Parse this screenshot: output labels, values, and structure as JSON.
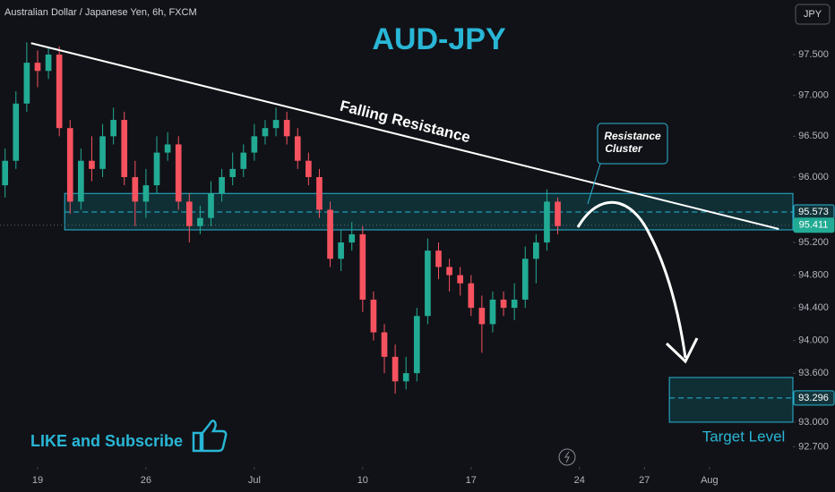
{
  "chart_data": {
    "type": "candlestick",
    "header": "Australian Dollar / Japanese Yen, 6h, FXCM",
    "currency": "JPY",
    "title": "AUD-JPY",
    "trendline_label": "Falling Resistance",
    "callout": [
      "Resistance",
      "Cluster"
    ],
    "cta": "LIKE and Subscribe",
    "target_label": "Target Level",
    "up_color": "#22ab94",
    "down_color": "#f7525f",
    "x": [
      1,
      2,
      3,
      4,
      5,
      6,
      7,
      8,
      9,
      10,
      11,
      12,
      13,
      14,
      15,
      16,
      17,
      18,
      19,
      20,
      21,
      22,
      23,
      24,
      25,
      26,
      27,
      28,
      29,
      30,
      31,
      32,
      33,
      34,
      35,
      36,
      37,
      38,
      39,
      40,
      41,
      42,
      43,
      44,
      45,
      46,
      47,
      48,
      49,
      50,
      51,
      52
    ],
    "open": [
      95.9,
      96.2,
      96.9,
      97.4,
      97.3,
      97.5,
      96.6,
      95.7,
      96.2,
      96.1,
      96.5,
      96.7,
      96.0,
      95.7,
      95.9,
      96.3,
      96.4,
      95.7,
      95.4,
      95.5,
      95.8,
      96.0,
      96.1,
      96.3,
      96.5,
      96.6,
      96.7,
      96.5,
      96.2,
      96.0,
      95.6,
      95.0,
      95.2,
      95.3,
      94.5,
      94.1,
      93.8,
      93.5,
      93.6,
      94.3,
      95.1,
      94.9,
      94.8,
      94.7,
      94.4,
      94.2,
      94.5,
      94.4,
      94.5,
      95.0,
      95.2,
      95.7
    ],
    "high": [
      96.35,
      97.05,
      97.65,
      97.55,
      97.6,
      97.6,
      96.7,
      96.35,
      96.5,
      96.65,
      96.85,
      96.8,
      96.2,
      96.1,
      96.5,
      96.55,
      96.5,
      95.8,
      95.65,
      95.95,
      96.1,
      96.3,
      96.4,
      96.65,
      96.7,
      96.85,
      96.8,
      96.6,
      96.3,
      96.1,
      95.7,
      95.35,
      95.45,
      95.4,
      94.6,
      94.2,
      93.95,
      93.8,
      94.4,
      95.25,
      95.2,
      95.0,
      94.9,
      94.8,
      94.55,
      94.6,
      94.6,
      94.7,
      95.15,
      95.3,
      95.85,
      95.75
    ],
    "low": [
      95.75,
      96.1,
      96.8,
      97.1,
      97.2,
      96.5,
      95.55,
      95.6,
      95.95,
      96.0,
      96.4,
      95.9,
      95.4,
      95.5,
      95.8,
      96.2,
      95.6,
      95.2,
      95.3,
      95.4,
      95.7,
      95.9,
      96.0,
      96.2,
      96.4,
      96.5,
      96.4,
      96.1,
      95.9,
      95.5,
      94.9,
      94.85,
      95.1,
      94.35,
      94.0,
      93.6,
      93.35,
      93.4,
      93.5,
      94.2,
      94.75,
      94.6,
      94.55,
      94.3,
      93.85,
      94.1,
      94.3,
      94.25,
      94.4,
      94.7,
      95.1,
      95.3
    ],
    "close": [
      96.2,
      96.9,
      97.4,
      97.3,
      97.5,
      96.6,
      95.7,
      96.2,
      96.1,
      96.5,
      96.7,
      96.0,
      95.7,
      95.9,
      96.3,
      96.4,
      95.7,
      95.4,
      95.5,
      95.8,
      96.0,
      96.1,
      96.3,
      96.5,
      96.6,
      96.7,
      96.5,
      96.2,
      96.0,
      95.6,
      95.0,
      95.2,
      95.3,
      94.5,
      94.1,
      93.8,
      93.5,
      93.6,
      94.3,
      95.1,
      94.9,
      94.8,
      94.7,
      94.4,
      94.2,
      94.5,
      94.4,
      94.5,
      95.0,
      95.2,
      95.7,
      95.4
    ],
    "xlim": [
      0.53,
      73.7
    ],
    "ylim": [
      92.452,
      98.168
    ],
    "xticks": [
      {
        "value": 4,
        "label": "19"
      },
      {
        "value": 14,
        "label": "26"
      },
      {
        "value": 24,
        "label": "Jul"
      },
      {
        "value": 34,
        "label": "10"
      },
      {
        "value": 44,
        "label": "17"
      },
      {
        "value": 54,
        "label": "24"
      },
      {
        "value": 60,
        "label": "27"
      },
      {
        "value": 66,
        "label": "Aug"
      }
    ],
    "yticks": [
      {
        "value": 97.5,
        "label": "97.500"
      },
      {
        "value": 97.0,
        "label": "97.000"
      },
      {
        "value": 96.5,
        "label": "96.500"
      },
      {
        "value": 96.0,
        "label": "96.000"
      },
      {
        "value": 95.2,
        "label": "95.200"
      },
      {
        "value": 94.8,
        "label": "94.800"
      },
      {
        "value": 94.4,
        "label": "94.400"
      },
      {
        "value": 94.0,
        "label": "94.000"
      },
      {
        "value": 93.6,
        "label": "93.600"
      },
      {
        "value": 93.0,
        "label": "93.000"
      },
      {
        "value": 92.7,
        "label": "92.700"
      }
    ],
    "zones": [
      {
        "from": 6.5,
        "top": 95.8,
        "bottom": 95.354,
        "mid": 95.573
      },
      {
        "from": 62.3,
        "top": 93.547,
        "bottom": 93.0,
        "mid": 93.296
      }
    ],
    "trendline": {
      "from": [
        3.4,
        97.64
      ],
      "to": [
        72.4,
        95.365
      ]
    },
    "price_labels": [
      {
        "value": 95.573,
        "label": "95.573",
        "color": "#12343a"
      },
      {
        "value": 95.411,
        "label": "95.411",
        "color": "#22ab94"
      },
      {
        "value": 93.296,
        "label": "93.296",
        "color": "#12343a"
      }
    ]
  }
}
